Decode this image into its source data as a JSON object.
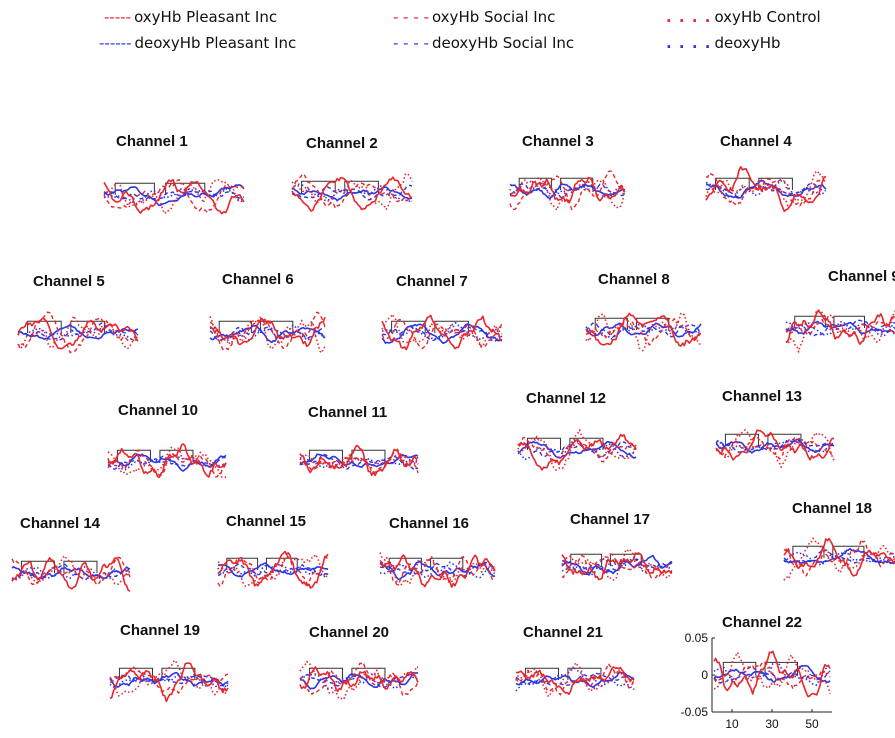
{
  "chart_data": {
    "type": "line",
    "legend": {
      "placement": "top",
      "entries": [
        {
          "label": "oxyHb Pleasant Inc",
          "symbol": "-----",
          "color": "#e8262b",
          "style": "dashed"
        },
        {
          "label": "oxyHb Social Inc",
          "symbol": "- - - -",
          "color": "#e8262b",
          "style": "dashed-wide"
        },
        {
          "label": "oxyHb Control",
          "symbol": ". . . .",
          "color": "#e8262b",
          "style": "dotted"
        },
        {
          "label": "deoxyHb Pleasant Inc",
          "symbol": "------",
          "color": "#2b36e6",
          "style": "dashed"
        },
        {
          "label": "deoxyHb Social Inc",
          "symbol": "- - - -",
          "color": "#2b36e6",
          "style": "dashed-wide"
        },
        {
          "label": "deoxyHb",
          "symbol": ". . . .",
          "color": "#2b36e6",
          "style": "dotted"
        }
      ]
    },
    "colors": {
      "oxy": "#e8262b",
      "deoxy": "#2b36e6",
      "block": "#333333"
    },
    "axis_example": {
      "channel": "Channel 22",
      "ylim": [
        -0.05,
        0.05
      ],
      "yticks": [
        "0.05",
        "0",
        "-0.05"
      ],
      "xlim": [
        0,
        60
      ],
      "xticks": [
        "10",
        "30",
        "50"
      ]
    },
    "channels": [
      {
        "title": "Channel 1",
        "seed": 1
      },
      {
        "title": "Channel 2",
        "seed": 2
      },
      {
        "title": "Channel 3",
        "seed": 3
      },
      {
        "title": "Channel 4",
        "seed": 4
      },
      {
        "title": "Channel 5",
        "seed": 5
      },
      {
        "title": "Channel 6",
        "seed": 6
      },
      {
        "title": "Channel 7",
        "seed": 7
      },
      {
        "title": "Channel 8",
        "seed": 8
      },
      {
        "title": "Channel 9",
        "seed": 9
      },
      {
        "title": "Channel 10",
        "seed": 10
      },
      {
        "title": "Channel 11",
        "seed": 11
      },
      {
        "title": "Channel 12",
        "seed": 12
      },
      {
        "title": "Channel 13",
        "seed": 13
      },
      {
        "title": "Channel 14",
        "seed": 14
      },
      {
        "title": "Channel 15",
        "seed": 15
      },
      {
        "title": "Channel 16",
        "seed": 16
      },
      {
        "title": "Channel 17",
        "seed": 17
      },
      {
        "title": "Channel 18",
        "seed": 18
      },
      {
        "title": "Channel 19",
        "seed": 19
      },
      {
        "title": "Channel 20",
        "seed": 20
      },
      {
        "title": "Channel 21",
        "seed": 21
      },
      {
        "title": "Channel 22",
        "seed": 22
      }
    ]
  }
}
